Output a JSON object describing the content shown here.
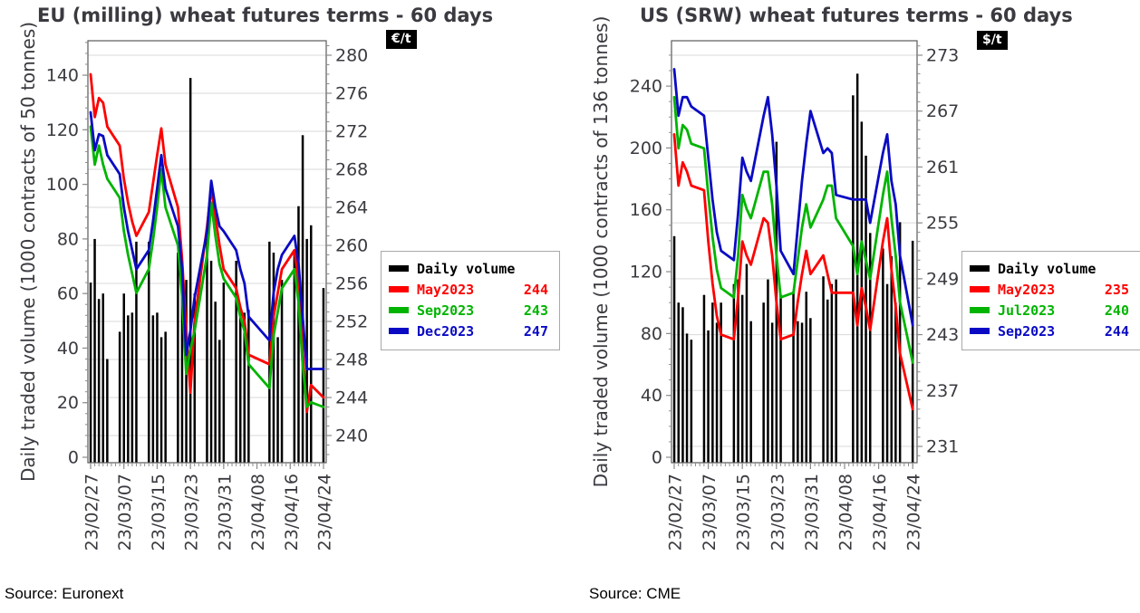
{
  "style": {
    "bar_color": "#000000",
    "red": "#fe0000",
    "green": "#00b400",
    "blue": "#0a0ac4",
    "grid_color": "#d9d9d9",
    "frame_color": "#595959",
    "tick_color": "#8c8c8c",
    "text_color": "#3a3a40"
  },
  "sources": {
    "eu": "Source: Euronext",
    "us": "Source: CME"
  },
  "chart_data": [
    {
      "id": "eu",
      "type": "bar+line",
      "title": "EU (milling) wheat futures terms - 60 days",
      "source": "Source: Euronext",
      "left_axis": {
        "label": "Daily traded volume (1000 contracts of 50 tonnes)",
        "ticks": [
          0,
          20,
          40,
          60,
          80,
          100,
          120,
          140
        ],
        "minor_step": 4,
        "ylim": [
          0,
          152
        ]
      },
      "right_axis": {
        "unit": "€/t",
        "ticks": [
          240,
          244,
          248,
          252,
          256,
          260,
          264,
          268,
          272,
          276,
          280
        ],
        "minor_step": 1,
        "ylim": [
          237,
          281.5
        ]
      },
      "grid": "horizontal-on-right-axis-majors",
      "legend_position": "right-center",
      "x_ticklabels": [
        "23/02/27",
        "23/03/07",
        "23/03/15",
        "23/03/23",
        "23/03/31",
        "23/04/08",
        "23/04/16",
        "23/04/24"
      ],
      "x": [
        "23/02/27",
        "23/02/28",
        "23/03/01",
        "23/03/02",
        "23/03/03",
        "23/03/06",
        "23/03/07",
        "23/03/08",
        "23/03/09",
        "23/03/10",
        "23/03/13",
        "23/03/14",
        "23/03/15",
        "23/03/16",
        "23/03/17",
        "23/03/20",
        "23/03/21",
        "23/03/22",
        "23/03/23",
        "23/03/24",
        "23/03/27",
        "23/03/28",
        "23/03/29",
        "23/03/30",
        "23/03/31",
        "23/04/03",
        "23/04/04",
        "23/04/05",
        "23/04/06",
        "23/04/11",
        "23/04/12",
        "23/04/13",
        "23/04/14",
        "23/04/17",
        "23/04/18",
        "23/04/19",
        "23/04/20",
        "23/04/21",
        "23/04/24"
      ],
      "bars": {
        "name": "Daily volume",
        "axis": "left",
        "color": "#000000",
        "values": [
          64,
          80,
          58,
          60,
          36,
          46,
          60,
          52,
          53,
          79,
          79,
          52,
          53,
          44,
          46,
          75,
          66,
          65,
          139,
          60,
          81,
          72,
          57,
          43,
          64,
          72,
          54,
          53,
          54,
          79,
          75,
          44,
          65,
          76,
          92,
          118,
          80,
          85,
          62
        ]
      },
      "series": [
        {
          "name": "May2023",
          "last_value": 244,
          "color": "#fe0000",
          "axis": "right",
          "values": [
            278,
            273.5,
            275.5,
            275,
            272.5,
            270.5,
            267,
            264.5,
            262.5,
            261,
            263.5,
            266.5,
            269.5,
            272.3,
            268.5,
            264,
            258.5,
            251,
            244.5,
            252,
            262,
            266,
            263,
            260,
            257.5,
            255.5,
            253.5,
            252,
            248.5,
            247.5,
            252.5,
            255,
            257.5,
            259.5,
            256,
            249,
            242.5,
            245.3,
            244
          ]
        },
        {
          "name": "Sep2023",
          "last_value": 243,
          "color": "#00b400",
          "axis": "right",
          "values": [
            272.5,
            268.5,
            270.5,
            268.5,
            267,
            265,
            261.5,
            259,
            257,
            255,
            257.5,
            260.5,
            264,
            268,
            264,
            260,
            254.5,
            246.5,
            249,
            251,
            259,
            264.5,
            261,
            258,
            256.5,
            254.5,
            252.5,
            251,
            247.5,
            245,
            250.5,
            253,
            255.5,
            257.5,
            254,
            247.5,
            243,
            243.5,
            243
          ]
        },
        {
          "name": "Dec2023",
          "last_value": 247,
          "color": "#0a0ac4",
          "axis": "right",
          "values": [
            274,
            270,
            271.7,
            271.5,
            269.5,
            267.5,
            264,
            261.5,
            259.5,
            257.5,
            259.5,
            262.5,
            266,
            269.5,
            266,
            262,
            257.5,
            248.5,
            251,
            254.5,
            261.5,
            266.8,
            264,
            262,
            261.5,
            259.5,
            257.5,
            256,
            252.5,
            250,
            255,
            257.5,
            259,
            261,
            258,
            252.5,
            247,
            247,
            247
          ]
        }
      ],
      "legend": [
        {
          "label": "Daily volume",
          "value": "",
          "color": "#000000"
        },
        {
          "label": "May2023",
          "value": "244",
          "color": "#fe0000"
        },
        {
          "label": "Sep2023",
          "value": "243",
          "color": "#00b400"
        },
        {
          "label": "Dec2023",
          "value": "247",
          "color": "#0a0ac4"
        }
      ]
    },
    {
      "id": "us",
      "type": "bar+line",
      "title": "US (SRW) wheat futures terms - 60 days",
      "source": "Source: CME",
      "left_axis": {
        "label": "Daily traded volume (1000 contracts of 136 tonnes)",
        "ticks": [
          0,
          40,
          80,
          120,
          160,
          200,
          240
        ],
        "minor_step": 10,
        "ylim": [
          0,
          269
        ]
      },
      "right_axis": {
        "unit": "$/t",
        "ticks": [
          231,
          237,
          243,
          249,
          255,
          261,
          267,
          273
        ],
        "minor_step": 1,
        "ylim": [
          229,
          274
        ]
      },
      "grid": "horizontal-on-right-axis-majors",
      "legend_position": "right-center",
      "x_ticklabels": [
        "23/02/27",
        "23/03/07",
        "23/03/15",
        "23/03/23",
        "23/03/31",
        "23/04/08",
        "23/04/16",
        "23/04/24"
      ],
      "x": [
        "23/02/27",
        "23/02/28",
        "23/03/01",
        "23/03/02",
        "23/03/03",
        "23/03/06",
        "23/03/07",
        "23/03/08",
        "23/03/09",
        "23/03/10",
        "23/03/13",
        "23/03/14",
        "23/03/15",
        "23/03/16",
        "23/03/17",
        "23/03/20",
        "23/03/21",
        "23/03/22",
        "23/03/23",
        "23/03/24",
        "23/03/27",
        "23/03/28",
        "23/03/29",
        "23/03/30",
        "23/03/31",
        "23/04/03",
        "23/04/04",
        "23/04/05",
        "23/04/06",
        "23/04/10",
        "23/04/11",
        "23/04/12",
        "23/04/13",
        "23/04/14",
        "23/04/17",
        "23/04/18",
        "23/04/19",
        "23/04/20",
        "23/04/21",
        "23/04/24"
      ],
      "bars": {
        "name": "Daily volume",
        "axis": "left",
        "color": "#000000",
        "values": [
          143,
          100,
          97,
          80,
          76,
          105,
          82,
          100,
          87,
          100,
          112,
          115,
          105,
          125,
          88,
          100,
          115,
          87,
          204,
          105,
          107,
          88,
          87,
          107,
          90,
          117,
          102,
          112,
          115,
          234,
          248,
          217,
          195,
          145,
          135,
          112,
          130,
          100,
          152,
          140
        ]
      },
      "series": [
        {
          "name": "May2023",
          "last_value": 235,
          "color": "#fe0000",
          "axis": "right",
          "values": [
            264.5,
            259,
            261.5,
            260.5,
            259,
            258.5,
            253,
            248.5,
            245,
            243,
            242.5,
            247,
            253,
            251.5,
            250.5,
            255.5,
            255,
            251.5,
            246.5,
            242.5,
            243,
            246.5,
            249.5,
            252,
            249.5,
            251.5,
            249.5,
            247.5,
            247.5,
            247.5,
            244,
            248,
            246,
            243.5,
            253,
            255.5,
            250,
            246,
            241,
            235
          ]
        },
        {
          "name": "Jul2023",
          "last_value": 240,
          "color": "#00b400",
          "axis": "right",
          "values": [
            268.5,
            263,
            265.5,
            265,
            263.5,
            263,
            258,
            253.5,
            250,
            248,
            247,
            251.5,
            258,
            256.5,
            255.5,
            260.5,
            260.5,
            257,
            251.5,
            247,
            247.5,
            251,
            254.5,
            257,
            254.5,
            257.5,
            259,
            259,
            255.5,
            252.5,
            249.5,
            253,
            251,
            249,
            258,
            260.5,
            255.5,
            251.5,
            246.5,
            240
          ]
        },
        {
          "name": "Sep2023",
          "last_value": 244,
          "color": "#0a0ac4",
          "axis": "right",
          "values": [
            271.5,
            266.5,
            268.5,
            268.5,
            267.5,
            266.5,
            262,
            257.5,
            254,
            252,
            251,
            256,
            262,
            260.5,
            259.5,
            266.5,
            268.5,
            264.5,
            259,
            252,
            249.5,
            254.5,
            259.5,
            263.5,
            267,
            262.5,
            263,
            262.5,
            258,
            257.5,
            257.5,
            257.5,
            257.5,
            255,
            262.5,
            264.5,
            259.5,
            257,
            251.5,
            244
          ]
        }
      ],
      "legend": [
        {
          "label": "Daily volume",
          "value": "",
          "color": "#000000"
        },
        {
          "label": "May2023",
          "value": "235",
          "color": "#fe0000"
        },
        {
          "label": "Jul2023",
          "value": "240",
          "color": "#00b400"
        },
        {
          "label": "Sep2023",
          "value": "244",
          "color": "#0a0ac4"
        }
      ]
    }
  ]
}
